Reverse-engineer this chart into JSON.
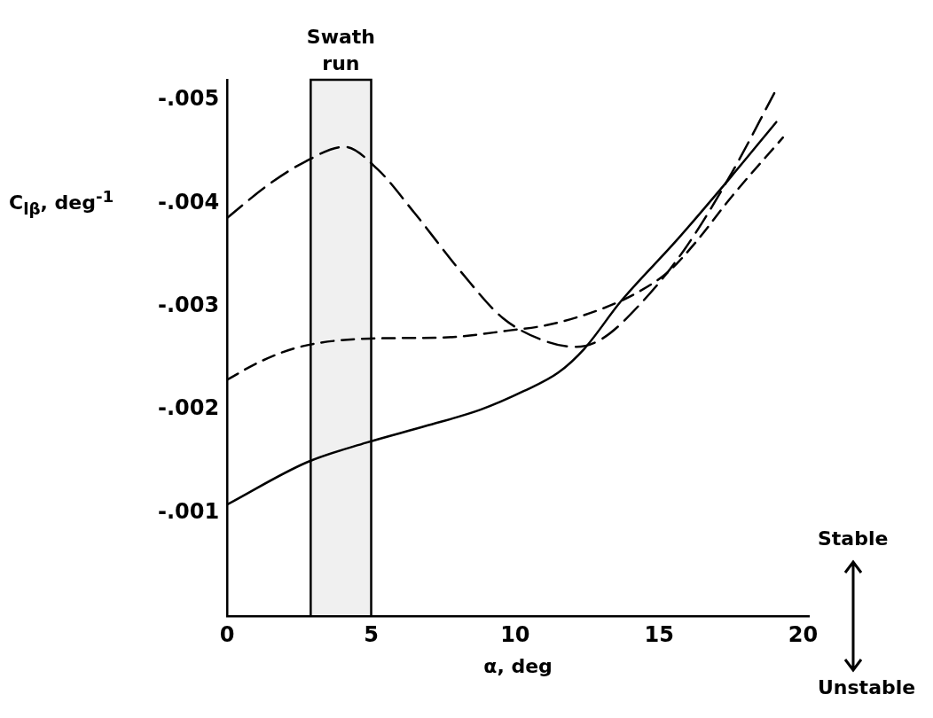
{
  "chart_data": {
    "type": "line",
    "xlabel": "α, deg",
    "ylabel": "C$_{lβ}$, deg$^{-1}$",
    "xlim": [
      0,
      20.2
    ],
    "xticks": [
      0,
      5,
      10,
      15,
      20
    ],
    "ylim": [
      0,
      -0.0052
    ],
    "yticks": [
      {
        "value": -0.001,
        "label": "-.001"
      },
      {
        "value": -0.002,
        "label": "-.002"
      },
      {
        "value": -0.003,
        "label": "-.003"
      },
      {
        "value": -0.004,
        "label": "-.004"
      },
      {
        "value": -0.005,
        "label": "-.005"
      }
    ],
    "grid": false,
    "legend": false,
    "marker": "none",
    "series": [
      {
        "color": "#000000",
        "line_style": "solid",
        "x": [
          0,
          2.77,
          4.83,
          6.87,
          8.8,
          10.3,
          11.5,
          12.4,
          13.67,
          15.6,
          17.5,
          19.07
        ],
        "values": [
          -0.00108,
          -0.00149,
          -0.00168,
          -0.00184,
          -0.002,
          -0.00218,
          -0.00236,
          -0.00259,
          -0.00305,
          -0.00364,
          -0.00426,
          -0.00479
        ]
      },
      {
        "color": "#000000",
        "line_style": "dashed",
        "x": [
          0,
          1.37,
          2.67,
          4.07,
          5.23,
          6.5,
          8.17,
          9.57,
          11.1,
          12.13,
          13.03,
          14.33,
          15.87,
          17.53,
          19.0
        ],
        "values": [
          -0.00386,
          -0.00417,
          -0.0044,
          -0.00455,
          -0.00433,
          -0.00391,
          -0.00332,
          -0.00289,
          -0.00266,
          -0.00261,
          -0.00269,
          -0.00302,
          -0.00355,
          -0.0043,
          -0.00507
        ]
      },
      {
        "color": "#000000",
        "line_style": "dashed",
        "x": [
          0,
          1.1,
          2.53,
          4.97,
          7.53,
          9.83,
          11.1,
          13.03,
          14.33,
          15.33,
          16.23,
          17.53,
          19.3
        ],
        "values": [
          -0.00229,
          -0.00246,
          -0.00261,
          -0.00269,
          -0.0027,
          -0.00277,
          -0.00282,
          -0.00298,
          -0.00315,
          -0.00334,
          -0.00361,
          -0.00407,
          -0.00464
        ]
      }
    ],
    "bands": [
      {
        "axis": "x",
        "from": 2.9,
        "to": 5.0,
        "label": "Swath run"
      }
    ],
    "annotations": [
      "Stable",
      "Unstable"
    ]
  }
}
